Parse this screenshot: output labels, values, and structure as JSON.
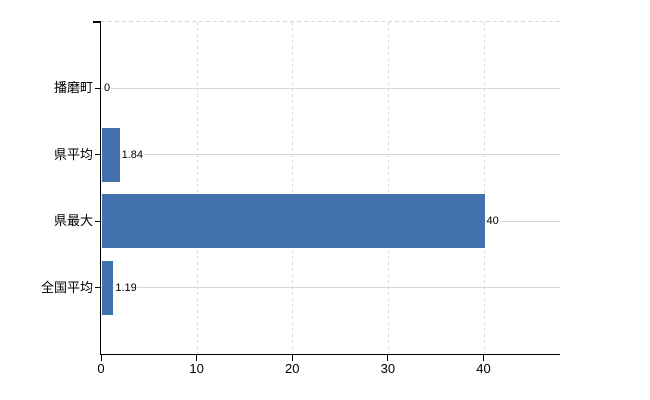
{
  "chart_data": {
    "type": "bar",
    "orientation": "horizontal",
    "title": "",
    "categories": [
      "播磨町",
      "県平均",
      "県最大",
      "全国平均"
    ],
    "values": [
      0,
      1.84,
      40,
      1.19
    ],
    "value_labels": [
      "0",
      "1.84",
      "40",
      "1.19"
    ],
    "x_ticks": [
      0,
      10,
      20,
      30,
      40
    ],
    "x_tick_labels": [
      "0",
      "10",
      "20",
      "30",
      "40"
    ],
    "xlim": [
      0,
      48
    ],
    "xlabel": "",
    "ylabel": "",
    "legend": null,
    "grid": {
      "horizontal": "solid",
      "vertical": "dashed",
      "top_border": "dashed"
    },
    "colors": {
      "bar": "#4271ae",
      "grid_horizontal": "#d5dbd1",
      "grid_vertical": "#d9d9d9",
      "top_border": "#d8d8d8",
      "axis": "#000000",
      "text": "#000000",
      "background": "#ffffff"
    }
  }
}
